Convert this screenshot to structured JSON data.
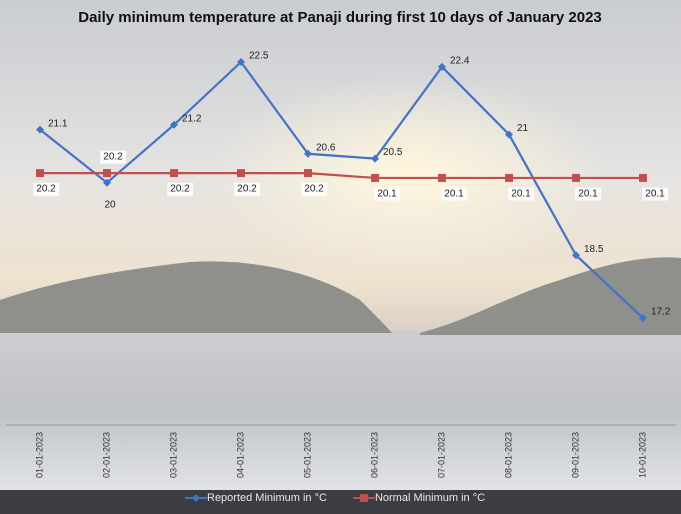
{
  "chart_data": {
    "type": "line",
    "title": "Daily minimum temperature at Panaji during first 10 days of January 2023",
    "categories": [
      "01-01-2023",
      "02-01-2023",
      "03-01-2023",
      "04-01-2023",
      "05-01-2023",
      "06-01-2023",
      "07-01-2023",
      "08-01-2023",
      "09-01-2023",
      "10-01-2023"
    ],
    "series": [
      {
        "name": "Reported Minimum in °C",
        "color": "#4472c4",
        "marker": "diamond",
        "values": [
          21.1,
          20,
          21.2,
          22.5,
          20.6,
          20.5,
          22.4,
          21,
          18.5,
          17.2
        ]
      },
      {
        "name": "Normal Minimum in °C",
        "color": "#c0504d",
        "marker": "square",
        "values": [
          20.2,
          20.2,
          20.2,
          20.2,
          20.2,
          20.1,
          20.1,
          20.1,
          20.1,
          20.1
        ]
      }
    ]
  }
}
